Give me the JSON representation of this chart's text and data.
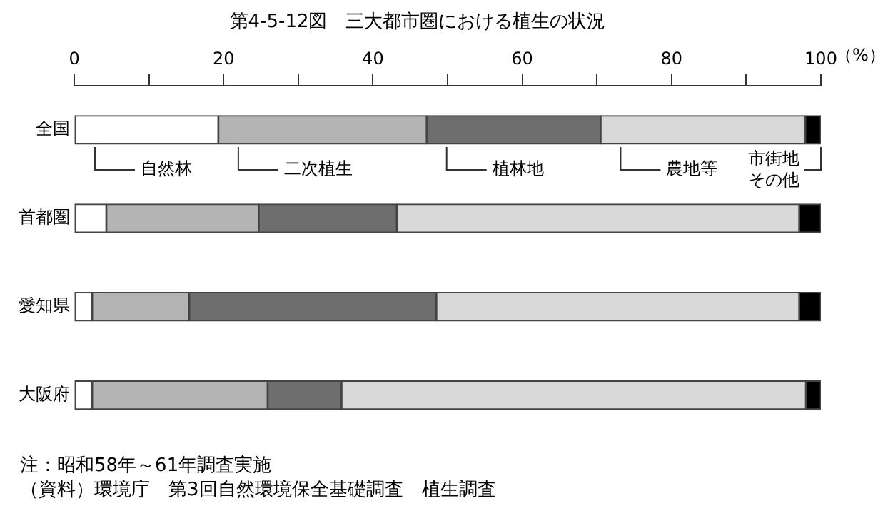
{
  "chart_data": {
    "type": "bar",
    "orientation": "horizontal",
    "stacked": true,
    "title": "第4-5-12図　三大都市圏における植生の状況",
    "xlabel": "（%）",
    "categories": [
      "全国",
      "首都圏",
      "愛知県",
      "大阪府"
    ],
    "series": [
      {
        "name": "自然林",
        "color": "#ffffff",
        "values": [
          19.3,
          4.3,
          2.4,
          2.4
        ]
      },
      {
        "name": "二次植生",
        "color": "#b4b4b4",
        "values": [
          27.9,
          20.4,
          13.0,
          23.5
        ]
      },
      {
        "name": "植林地",
        "color": "#6e6e6e",
        "values": [
          23.3,
          18.5,
          33.1,
          9.9
        ]
      },
      {
        "name": "農地等",
        "color": "#d9d9d9",
        "values": [
          27.4,
          53.9,
          48.6,
          62.2
        ]
      },
      {
        "name": "市街地その他",
        "color": "#000000",
        "values": [
          2.1,
          2.9,
          2.9,
          2.0
        ]
      }
    ],
    "xlim": [
      0,
      100
    ],
    "xticks": [
      0,
      {
        "value": 10,
        "label": null
      },
      20,
      {
        "value": 30,
        "label": null
      },
      40,
      {
        "value": 50,
        "label": null
      },
      60,
      {
        "value": 70,
        "label": null
      },
      80,
      {
        "value": 90,
        "label": null
      },
      100
    ],
    "grid": false,
    "legend": false,
    "annotations": [
      "注：昭和58年～61年調査実施",
      "（資料）環境庁　第3回自然環境保全基礎調査　植生調査"
    ]
  }
}
